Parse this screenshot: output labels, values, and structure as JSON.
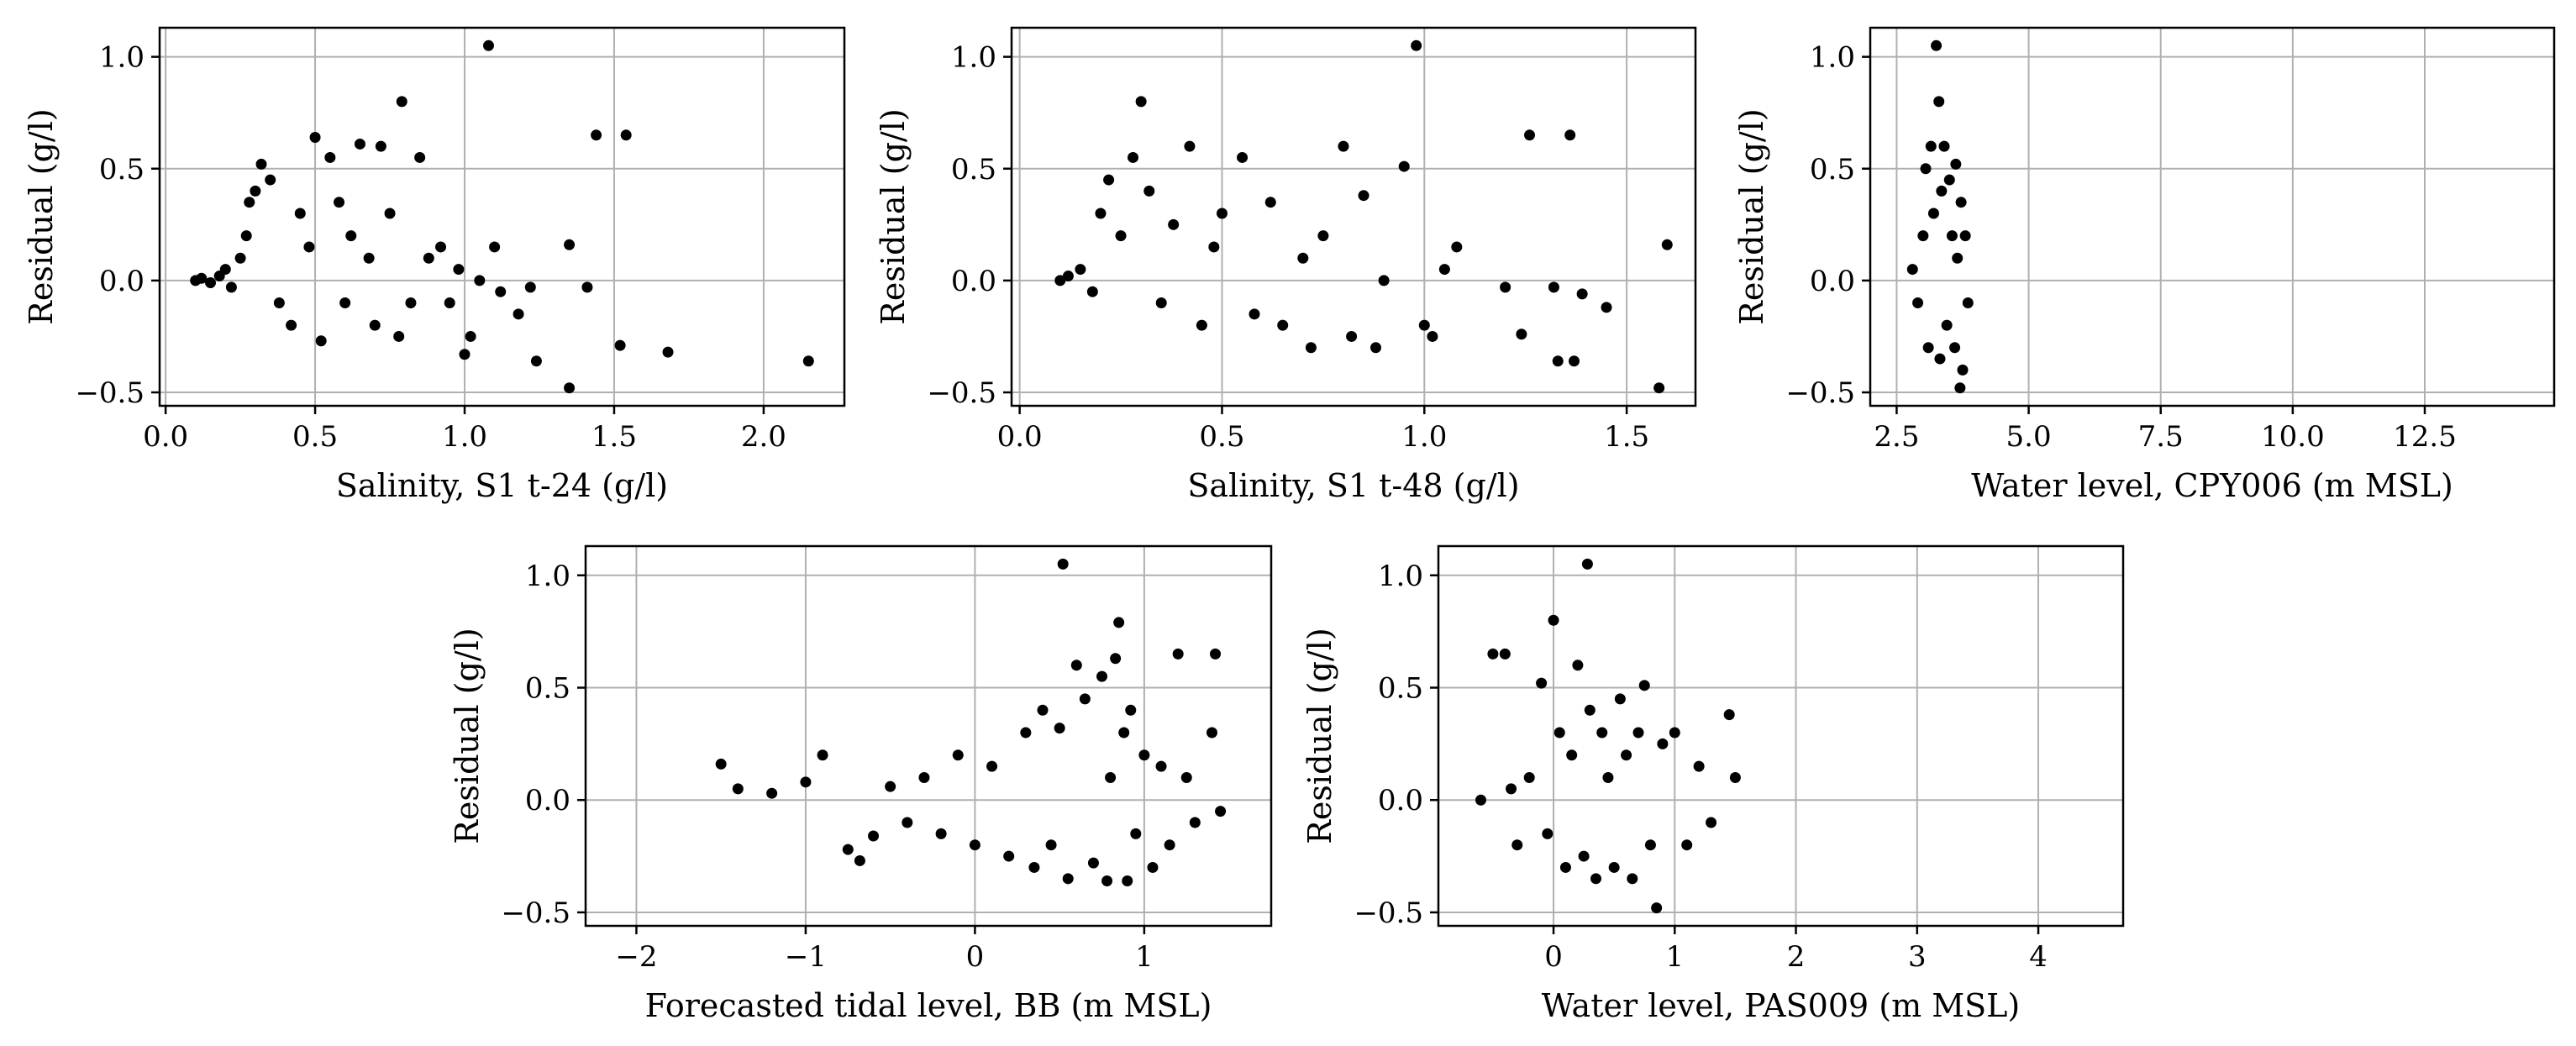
{
  "chart_data": [
    {
      "type": "scatter",
      "xlabel": "Salinity, S1 t-24 (g/l)",
      "ylabel": "Residual (g/l)",
      "xlim": [
        -0.02,
        2.27
      ],
      "ylim": [
        -0.56,
        1.13
      ],
      "xticks": [
        0.0,
        0.5,
        1.0,
        1.5,
        2.0
      ],
      "xtick_labels": [
        "0.0",
        "0.5",
        "1.0",
        "1.5",
        "2.0"
      ],
      "yticks": [
        -0.5,
        0.0,
        0.5,
        1.0
      ],
      "ytick_labels": [
        "−0.5",
        "0.0",
        "0.5",
        "1.0"
      ],
      "grid": true,
      "points": [
        [
          0.1,
          0.0
        ],
        [
          0.12,
          0.01
        ],
        [
          0.15,
          -0.01
        ],
        [
          0.18,
          0.02
        ],
        [
          0.2,
          0.05
        ],
        [
          0.22,
          -0.03
        ],
        [
          0.25,
          0.1
        ],
        [
          0.27,
          0.2
        ],
        [
          0.28,
          0.35
        ],
        [
          0.3,
          0.4
        ],
        [
          0.32,
          0.52
        ],
        [
          0.35,
          0.45
        ],
        [
          0.38,
          -0.1
        ],
        [
          0.42,
          -0.2
        ],
        [
          0.45,
          0.3
        ],
        [
          0.48,
          0.15
        ],
        [
          0.5,
          0.64
        ],
        [
          0.52,
          -0.27
        ],
        [
          0.55,
          0.55
        ],
        [
          0.58,
          0.35
        ],
        [
          0.6,
          -0.1
        ],
        [
          0.62,
          0.2
        ],
        [
          0.65,
          0.61
        ],
        [
          0.68,
          0.1
        ],
        [
          0.7,
          -0.2
        ],
        [
          0.72,
          0.6
        ],
        [
          0.75,
          0.3
        ],
        [
          0.78,
          -0.25
        ],
        [
          0.79,
          0.8
        ],
        [
          0.82,
          -0.1
        ],
        [
          0.85,
          0.55
        ],
        [
          0.88,
          0.1
        ],
        [
          0.92,
          0.15
        ],
        [
          0.95,
          -0.1
        ],
        [
          0.98,
          0.05
        ],
        [
          1.0,
          -0.33
        ],
        [
          1.02,
          -0.25
        ],
        [
          1.05,
          0.0
        ],
        [
          1.08,
          1.05
        ],
        [
          1.1,
          0.15
        ],
        [
          1.12,
          -0.05
        ],
        [
          1.18,
          -0.15
        ],
        [
          1.22,
          -0.03
        ],
        [
          1.24,
          -0.36
        ],
        [
          1.35,
          0.16
        ],
        [
          1.35,
          -0.48
        ],
        [
          1.41,
          -0.03
        ],
        [
          1.44,
          0.65
        ],
        [
          1.52,
          -0.29
        ],
        [
          1.54,
          0.65
        ],
        [
          1.68,
          -0.32
        ],
        [
          2.15,
          -0.36
        ]
      ]
    },
    {
      "type": "scatter",
      "xlabel": "Salinity, S1 t-48 (g/l)",
      "ylabel": "Residual (g/l)",
      "xlim": [
        -0.02,
        1.67
      ],
      "ylim": [
        -0.56,
        1.13
      ],
      "xticks": [
        0.0,
        0.5,
        1.0,
        1.5
      ],
      "xtick_labels": [
        "0.0",
        "0.5",
        "1.0",
        "1.5"
      ],
      "yticks": [
        -0.5,
        0.0,
        0.5,
        1.0
      ],
      "ytick_labels": [
        "−0.5",
        "0.0",
        "0.5",
        "1.0"
      ],
      "grid": true,
      "points": [
        [
          0.1,
          0.0
        ],
        [
          0.12,
          0.02
        ],
        [
          0.15,
          0.05
        ],
        [
          0.18,
          -0.05
        ],
        [
          0.2,
          0.3
        ],
        [
          0.22,
          0.45
        ],
        [
          0.25,
          0.2
        ],
        [
          0.28,
          0.55
        ],
        [
          0.3,
          0.8
        ],
        [
          0.32,
          0.4
        ],
        [
          0.35,
          -0.1
        ],
        [
          0.38,
          0.25
        ],
        [
          0.42,
          0.6
        ],
        [
          0.45,
          -0.2
        ],
        [
          0.48,
          0.15
        ],
        [
          0.5,
          0.3
        ],
        [
          0.55,
          0.55
        ],
        [
          0.58,
          -0.15
        ],
        [
          0.62,
          0.35
        ],
        [
          0.65,
          -0.2
        ],
        [
          0.7,
          0.1
        ],
        [
          0.72,
          -0.3
        ],
        [
          0.75,
          0.2
        ],
        [
          0.8,
          0.6
        ],
        [
          0.82,
          -0.25
        ],
        [
          0.85,
          0.38
        ],
        [
          0.88,
          -0.3
        ],
        [
          0.9,
          0.0
        ],
        [
          0.95,
          0.51
        ],
        [
          0.98,
          1.05
        ],
        [
          1.0,
          -0.2
        ],
        [
          1.02,
          -0.25
        ],
        [
          1.05,
          0.05
        ],
        [
          1.08,
          0.15
        ],
        [
          1.2,
          -0.03
        ],
        [
          1.24,
          -0.24
        ],
        [
          1.26,
          0.65
        ],
        [
          1.32,
          -0.03
        ],
        [
          1.33,
          -0.36
        ],
        [
          1.36,
          0.65
        ],
        [
          1.37,
          -0.36
        ],
        [
          1.39,
          -0.06
        ],
        [
          1.45,
          -0.12
        ],
        [
          1.58,
          -0.48
        ],
        [
          1.6,
          0.16
        ]
      ]
    },
    {
      "type": "scatter",
      "xlabel": "Water level, CPY006 (m MSL)",
      "ylabel": "Residual (g/l)",
      "xlim": [
        2.0,
        14.95
      ],
      "ylim": [
        -0.56,
        1.13
      ],
      "xticks": [
        2.5,
        5.0,
        7.5,
        10.0,
        12.5
      ],
      "xtick_labels": [
        "2.5",
        "5.0",
        "7.5",
        "10.0",
        "12.5"
      ],
      "yticks": [
        -0.5,
        0.0,
        0.5,
        1.0
      ],
      "ytick_labels": [
        "−0.5",
        "0.0",
        "0.5",
        "1.0"
      ],
      "grid": true,
      "points": [
        [
          2.8,
          0.05
        ],
        [
          2.9,
          -0.1
        ],
        [
          3.0,
          0.2
        ],
        [
          3.05,
          0.5
        ],
        [
          3.1,
          -0.3
        ],
        [
          3.15,
          0.6
        ],
        [
          3.2,
          0.3
        ],
        [
          3.25,
          1.05
        ],
        [
          3.3,
          0.8
        ],
        [
          3.32,
          -0.35
        ],
        [
          3.35,
          0.4
        ],
        [
          3.4,
          0.6
        ],
        [
          3.45,
          -0.2
        ],
        [
          3.5,
          0.45
        ],
        [
          3.55,
          0.2
        ],
        [
          3.6,
          -0.3
        ],
        [
          3.62,
          0.52
        ],
        [
          3.65,
          0.1
        ],
        [
          3.7,
          -0.48
        ],
        [
          3.72,
          0.35
        ],
        [
          3.75,
          -0.4
        ],
        [
          3.8,
          0.2
        ],
        [
          3.85,
          -0.1
        ]
      ]
    },
    {
      "type": "scatter",
      "xlabel": "Forecasted tidal level, BB (m MSL)",
      "ylabel": "Residual (g/l)",
      "xlim": [
        -2.3,
        1.75
      ],
      "ylim": [
        -0.56,
        1.13
      ],
      "xticks": [
        -2,
        -1,
        0,
        1
      ],
      "xtick_labels": [
        "−2",
        "−1",
        "0",
        "1"
      ],
      "yticks": [
        -0.5,
        0.0,
        0.5,
        1.0
      ],
      "ytick_labels": [
        "−0.5",
        "0.0",
        "0.5",
        "1.0"
      ],
      "grid": true,
      "points": [
        [
          -1.5,
          0.16
        ],
        [
          -1.4,
          0.05
        ],
        [
          -1.2,
          0.03
        ],
        [
          -1.0,
          0.08
        ],
        [
          -0.9,
          0.2
        ],
        [
          -0.75,
          -0.22
        ],
        [
          -0.68,
          -0.27
        ],
        [
          -0.6,
          -0.16
        ],
        [
          -0.5,
          0.06
        ],
        [
          -0.4,
          -0.1
        ],
        [
          -0.3,
          0.1
        ],
        [
          -0.2,
          -0.15
        ],
        [
          -0.1,
          0.2
        ],
        [
          0.0,
          -0.2
        ],
        [
          0.1,
          0.15
        ],
        [
          0.2,
          -0.25
        ],
        [
          0.3,
          0.3
        ],
        [
          0.35,
          -0.3
        ],
        [
          0.4,
          0.4
        ],
        [
          0.45,
          -0.2
        ],
        [
          0.5,
          0.32
        ],
        [
          0.52,
          1.05
        ],
        [
          0.55,
          -0.35
        ],
        [
          0.6,
          0.6
        ],
        [
          0.65,
          0.45
        ],
        [
          0.7,
          -0.28
        ],
        [
          0.75,
          0.55
        ],
        [
          0.78,
          -0.36
        ],
        [
          0.8,
          0.1
        ],
        [
          0.83,
          0.63
        ],
        [
          0.85,
          0.79
        ],
        [
          0.88,
          0.3
        ],
        [
          0.9,
          -0.36
        ],
        [
          0.92,
          0.4
        ],
        [
          0.95,
          -0.15
        ],
        [
          1.0,
          0.2
        ],
        [
          1.05,
          -0.3
        ],
        [
          1.1,
          0.15
        ],
        [
          1.15,
          -0.2
        ],
        [
          1.2,
          0.65
        ],
        [
          1.25,
          0.1
        ],
        [
          1.3,
          -0.1
        ],
        [
          1.4,
          0.3
        ],
        [
          1.42,
          0.65
        ],
        [
          1.45,
          -0.05
        ]
      ]
    },
    {
      "type": "scatter",
      "xlabel": "Water level, PAS009 (m MSL)",
      "ylabel": "Residual (g/l)",
      "xlim": [
        -0.95,
        4.7
      ],
      "ylim": [
        -0.56,
        1.13
      ],
      "xticks": [
        0,
        1,
        2,
        3,
        4
      ],
      "xtick_labels": [
        "0",
        "1",
        "2",
        "3",
        "4"
      ],
      "yticks": [
        -0.5,
        0.0,
        0.5,
        1.0
      ],
      "ytick_labels": [
        "−0.5",
        "0.0",
        "0.5",
        "1.0"
      ],
      "grid": true,
      "points": [
        [
          -0.6,
          0.0
        ],
        [
          -0.5,
          0.65
        ],
        [
          -0.4,
          0.65
        ],
        [
          -0.35,
          0.05
        ],
        [
          -0.3,
          -0.2
        ],
        [
          -0.2,
          0.1
        ],
        [
          -0.1,
          0.52
        ],
        [
          -0.05,
          -0.15
        ],
        [
          0.0,
          0.8
        ],
        [
          0.05,
          0.3
        ],
        [
          0.1,
          -0.3
        ],
        [
          0.15,
          0.2
        ],
        [
          0.2,
          0.6
        ],
        [
          0.25,
          -0.25
        ],
        [
          0.28,
          1.05
        ],
        [
          0.3,
          0.4
        ],
        [
          0.35,
          -0.35
        ],
        [
          0.4,
          0.3
        ],
        [
          0.45,
          0.1
        ],
        [
          0.5,
          -0.3
        ],
        [
          0.55,
          0.45
        ],
        [
          0.6,
          0.2
        ],
        [
          0.65,
          -0.35
        ],
        [
          0.7,
          0.3
        ],
        [
          0.75,
          0.51
        ],
        [
          0.8,
          -0.2
        ],
        [
          0.85,
          -0.48
        ],
        [
          0.9,
          0.25
        ],
        [
          1.0,
          0.3
        ],
        [
          1.1,
          -0.2
        ],
        [
          1.2,
          0.15
        ],
        [
          1.3,
          -0.1
        ],
        [
          1.45,
          0.38
        ],
        [
          1.5,
          0.1
        ]
      ]
    }
  ]
}
